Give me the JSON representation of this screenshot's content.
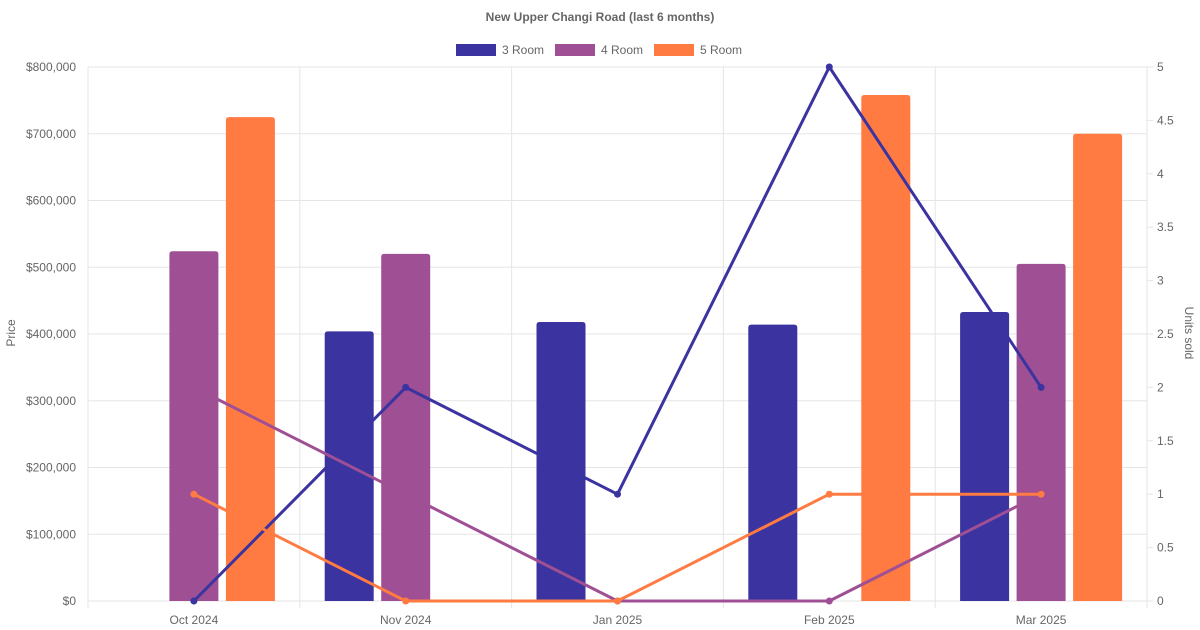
{
  "chart_data": {
    "type": "bar",
    "title": "New Upper Changi Road (last 6 months)",
    "categories": [
      "Oct 2024",
      "Nov 2024",
      "Jan 2025",
      "Feb 2025",
      "Mar 2025"
    ],
    "series": [
      {
        "name": "3 Room",
        "color": "#3a33a0",
        "price": [
          null,
          404000,
          418000,
          414000,
          433000
        ],
        "units_sold": [
          0,
          2,
          1,
          5,
          2
        ]
      },
      {
        "name": "4 Room",
        "color": "#9f5094",
        "price": [
          524000,
          520000,
          null,
          null,
          505000
        ],
        "units_sold": [
          2,
          1,
          0,
          0,
          1
        ]
      },
      {
        "name": "5 Room",
        "color": "#ff7b42",
        "price": [
          725000,
          null,
          null,
          758000,
          700000
        ],
        "units_sold": [
          1,
          0,
          0,
          1,
          1
        ]
      }
    ],
    "ylabel": "Price",
    "y2label": "Units sold",
    "ylim": [
      0,
      800000
    ],
    "y2lim": [
      0,
      5
    ],
    "yticks": [
      "$0",
      "$100,000",
      "$200,000",
      "$300,000",
      "$400,000",
      "$500,000",
      "$600,000",
      "$700,000",
      "$800,000"
    ],
    "y2ticks": [
      "0",
      "0.5",
      "1",
      "1.5",
      "2",
      "2.5",
      "3",
      "3.5",
      "4",
      "4.5",
      "5"
    ],
    "grid": true,
    "legend_position": "top"
  }
}
